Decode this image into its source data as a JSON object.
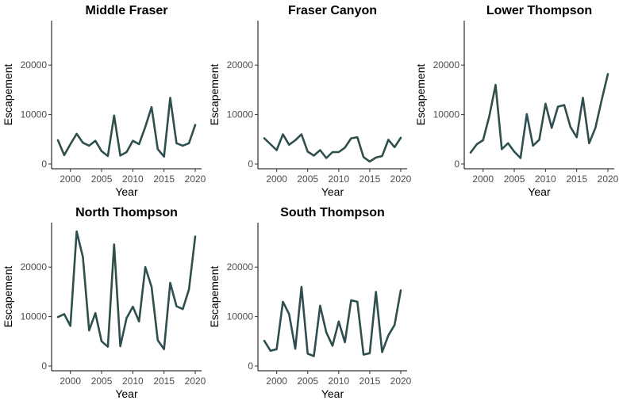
{
  "chart_data": [
    {
      "type": "line",
      "title": "Middle Fraser",
      "xlabel": "Year",
      "ylabel": "Escapement",
      "xlim": [
        1998,
        2020
      ],
      "ylim": [
        0,
        29000
      ],
      "xticks": [
        "2000",
        "2005",
        "2010",
        "2015",
        "2020"
      ],
      "yticks": [
        "0",
        "10000",
        "20000"
      ],
      "x": [
        1998,
        1999,
        2000,
        2001,
        2002,
        2003,
        2004,
        2005,
        2006,
        2007,
        2008,
        2009,
        2010,
        2011,
        2012,
        2013,
        2014,
        2015,
        2016,
        2017,
        2018,
        2019,
        2020
      ],
      "series": [
        {
          "values": [
            4800,
            1800,
            4000,
            6100,
            4300,
            3700,
            4700,
            2600,
            1600,
            9800,
            1700,
            2400,
            4700,
            4000,
            7500,
            11500,
            3000,
            1500,
            13400,
            4200,
            3700,
            4200,
            7900
          ]
        }
      ],
      "grid": false,
      "line_color": "#2f4f4f"
    },
    {
      "type": "line",
      "title": "Fraser Canyon",
      "xlabel": "Year",
      "ylabel": "Escapement",
      "xlim": [
        1998,
        2020
      ],
      "ylim": [
        0,
        29000
      ],
      "xticks": [
        "2000",
        "2005",
        "2010",
        "2015",
        "2020"
      ],
      "yticks": [
        "0",
        "10000",
        "20000"
      ],
      "x": [
        1998,
        1999,
        2000,
        2001,
        2002,
        2003,
        2004,
        2005,
        2006,
        2007,
        2008,
        2009,
        2010,
        2011,
        2012,
        2013,
        2014,
        2015,
        2016,
        2017,
        2018,
        2019,
        2020
      ],
      "series": [
        {
          "values": [
            5200,
            4000,
            2800,
            6000,
            3900,
            4800,
            6000,
            2500,
            1700,
            2800,
            1200,
            2400,
            2400,
            3300,
            5200,
            5400,
            1400,
            500,
            1300,
            1600,
            4900,
            3400,
            5300
          ]
        }
      ],
      "grid": false,
      "line_color": "#2f4f4f"
    },
    {
      "type": "line",
      "title": "Lower Thompson",
      "xlabel": "Year",
      "ylabel": "Escapement",
      "xlim": [
        1998,
        2020
      ],
      "ylim": [
        0,
        29000
      ],
      "xticks": [
        "2000",
        "2005",
        "2010",
        "2015",
        "2020"
      ],
      "yticks": [
        "0",
        "10000",
        "20000"
      ],
      "x": [
        1998,
        1999,
        2000,
        2001,
        2002,
        2003,
        2004,
        2005,
        2006,
        2007,
        2008,
        2009,
        2010,
        2011,
        2012,
        2013,
        2014,
        2015,
        2016,
        2017,
        2018,
        2019,
        2020
      ],
      "series": [
        {
          "values": [
            2300,
            4000,
            4800,
            9700,
            16000,
            3000,
            4200,
            2500,
            1200,
            10100,
            3700,
            4900,
            12200,
            7300,
            11600,
            11900,
            7500,
            5400,
            13400,
            4200,
            7300,
            12900,
            18200
          ]
        }
      ],
      "grid": false,
      "line_color": "#2f4f4f"
    },
    {
      "type": "line",
      "title": "North Thompson",
      "xlabel": "Year",
      "ylabel": "Escapement",
      "xlim": [
        1998,
        2020
      ],
      "ylim": [
        0,
        29000
      ],
      "xticks": [
        "2000",
        "2005",
        "2010",
        "2015",
        "2020"
      ],
      "yticks": [
        "0",
        "10000",
        "20000"
      ],
      "x": [
        1998,
        1999,
        2000,
        2001,
        2002,
        2003,
        2004,
        2005,
        2006,
        2007,
        2008,
        2009,
        2010,
        2011,
        2012,
        2013,
        2014,
        2015,
        2016,
        2017,
        2018,
        2019,
        2020
      ],
      "series": [
        {
          "values": [
            9900,
            10500,
            8100,
            27200,
            22000,
            7200,
            10700,
            5000,
            3900,
            24600,
            4000,
            9700,
            12000,
            9000,
            20000,
            16000,
            5200,
            3400,
            16800,
            12100,
            11500,
            15500,
            26200
          ]
        }
      ],
      "grid": false,
      "line_color": "#2f4f4f"
    },
    {
      "type": "line",
      "title": "South Thompson",
      "xlabel": "Year",
      "ylabel": "Escapement",
      "xlim": [
        1998,
        2020
      ],
      "ylim": [
        0,
        29000
      ],
      "xticks": [
        "2000",
        "2005",
        "2010",
        "2015",
        "2020"
      ],
      "yticks": [
        "0",
        "10000",
        "20000"
      ],
      "x": [
        1998,
        1999,
        2000,
        2001,
        2002,
        2003,
        2004,
        2005,
        2006,
        2007,
        2008,
        2009,
        2010,
        2011,
        2012,
        2013,
        2014,
        2015,
        2016,
        2017,
        2018,
        2019,
        2020
      ],
      "series": [
        {
          "values": [
            5100,
            3100,
            3400,
            13000,
            10500,
            3500,
            16000,
            2500,
            2000,
            12200,
            6800,
            4100,
            9000,
            4800,
            13300,
            13000,
            2300,
            2600,
            15000,
            2800,
            6200,
            8300,
            15300
          ]
        }
      ],
      "grid": false,
      "line_color": "#2f4f4f"
    }
  ]
}
